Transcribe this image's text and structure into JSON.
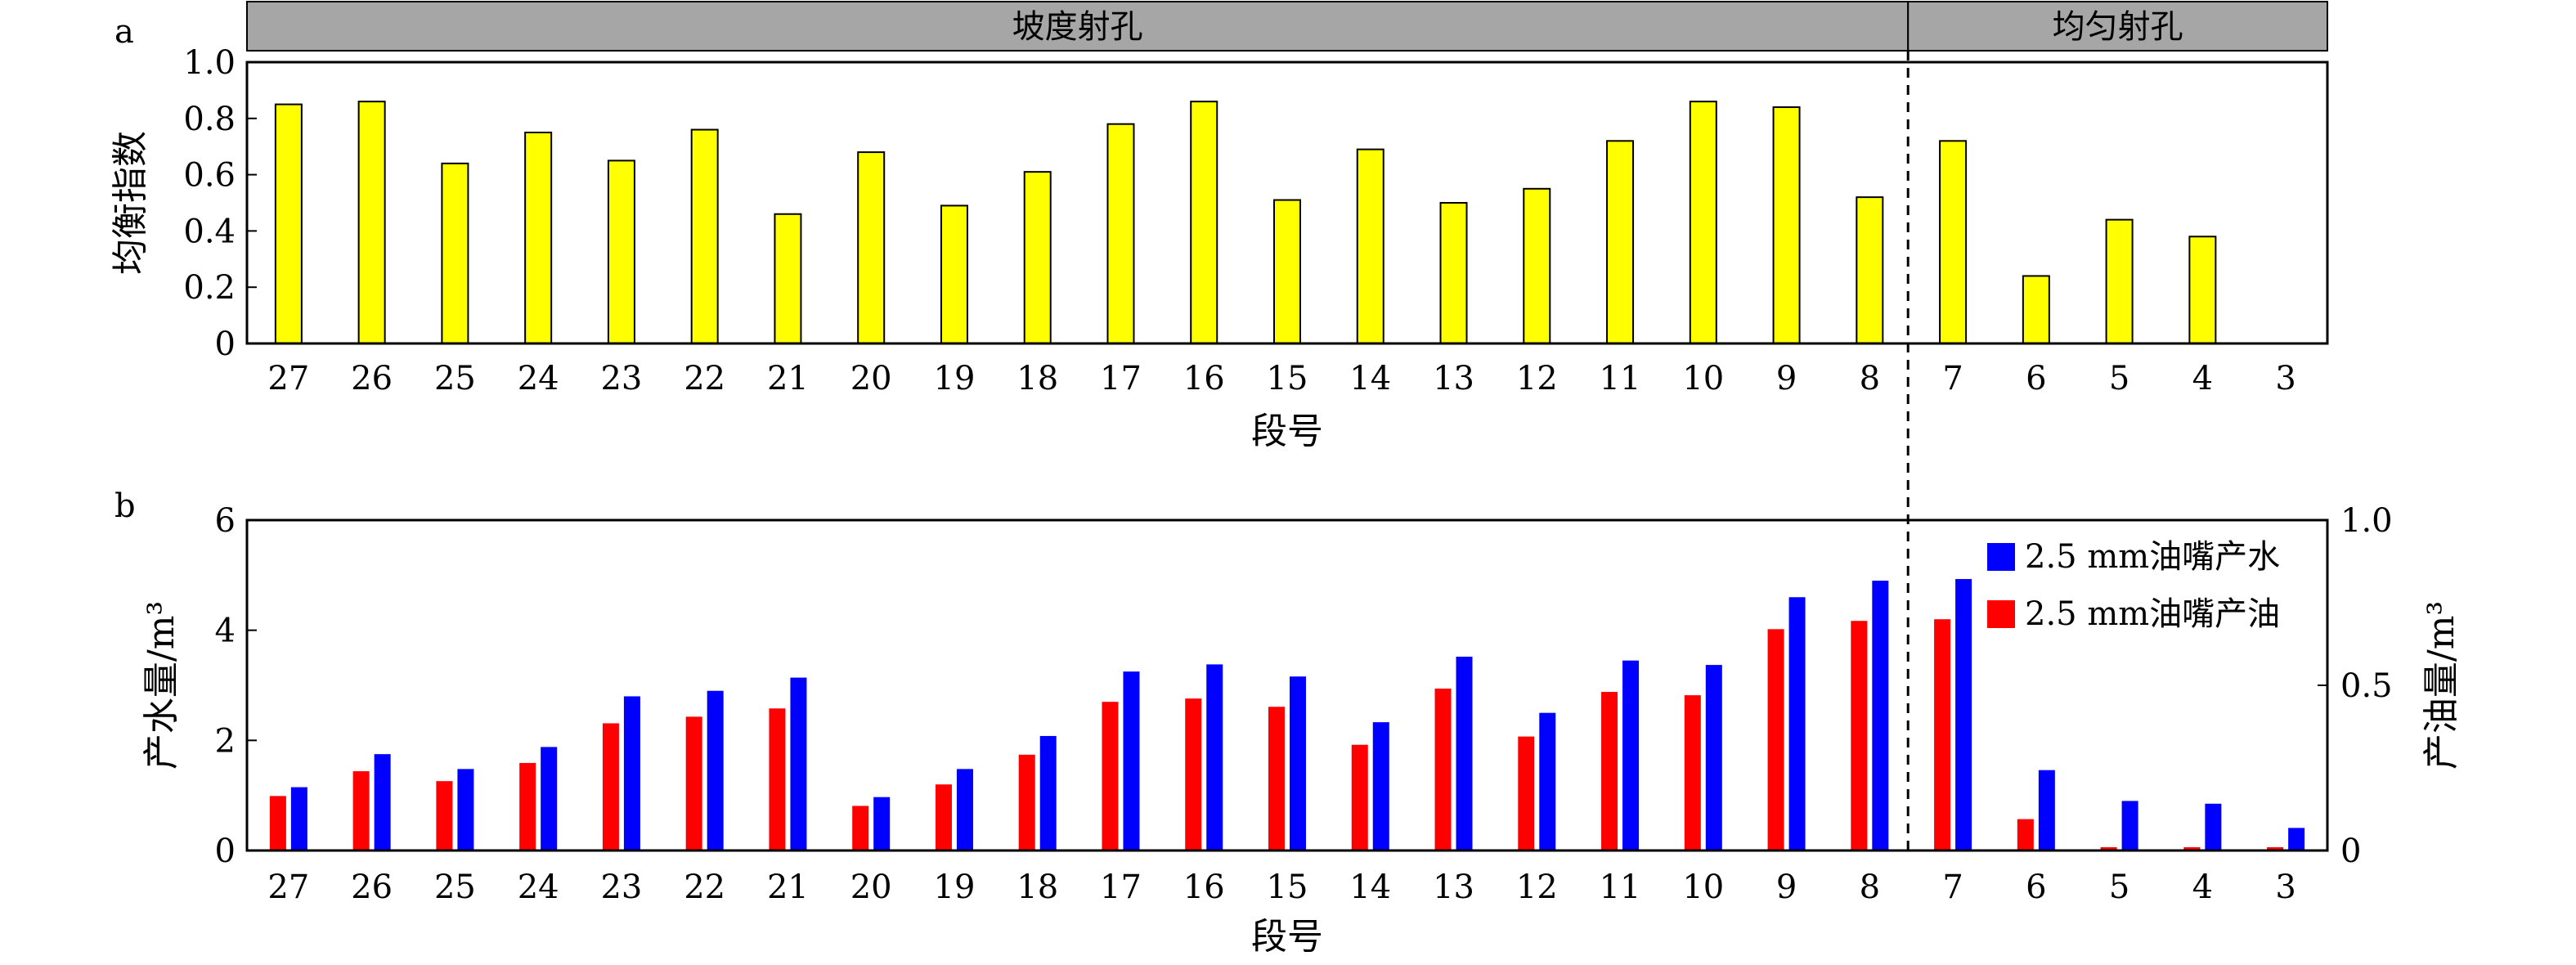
{
  "chart_data": [
    {
      "panel_label": "a",
      "type": "bar",
      "group_headers": [
        {
          "label": "坡度射孔",
          "from": "27",
          "to": "8"
        },
        {
          "label": "均匀射孔",
          "from": "7",
          "to": "3"
        }
      ],
      "categories": [
        "27",
        "26",
        "25",
        "24",
        "23",
        "22",
        "21",
        "20",
        "19",
        "18",
        "17",
        "16",
        "15",
        "14",
        "13",
        "12",
        "11",
        "10",
        "9",
        "8",
        "7",
        "6",
        "5",
        "4",
        "3"
      ],
      "series": [
        {
          "values": [
            0.85,
            0.86,
            0.64,
            0.75,
            0.65,
            0.76,
            0.46,
            0.68,
            0.49,
            0.61,
            0.78,
            0.86,
            0.51,
            0.69,
            0.5,
            0.55,
            0.72,
            0.86,
            0.84,
            0.52,
            0.72,
            0.24,
            0.44,
            0.38,
            null
          ],
          "color": "#ffff00"
        }
      ],
      "xlabel": "段号",
      "ylabel": "均衡指数",
      "ylim": [
        0,
        1.0
      ],
      "yticks": [
        "0",
        "0.2",
        "0.4",
        "0.6",
        "0.8",
        "1.0"
      ],
      "divider_after": "8"
    },
    {
      "panel_label": "b",
      "type": "bar",
      "categories": [
        "27",
        "26",
        "25",
        "24",
        "23",
        "22",
        "21",
        "20",
        "19",
        "18",
        "17",
        "16",
        "15",
        "14",
        "13",
        "12",
        "11",
        "10",
        "9",
        "8",
        "7",
        "6",
        "5",
        "4",
        "3"
      ],
      "series": [
        {
          "name": "2.5 mm油嘴产油",
          "axis": "right",
          "color": "#ff0000",
          "values": [
            0.165,
            0.24,
            0.21,
            0.265,
            0.385,
            0.405,
            0.43,
            0.135,
            0.2,
            0.29,
            0.45,
            0.46,
            0.435,
            0.32,
            0.49,
            0.345,
            0.48,
            0.47,
            0.67,
            0.695,
            0.7,
            0.095,
            0.01,
            0.01,
            0.01
          ]
        },
        {
          "name": "2.5 mm油嘴产水",
          "axis": "left",
          "color": "#0000ff",
          "values": [
            1.15,
            1.75,
            1.48,
            1.88,
            2.8,
            2.9,
            3.14,
            0.97,
            1.48,
            2.08,
            3.25,
            3.38,
            3.16,
            2.33,
            3.52,
            2.5,
            3.45,
            3.37,
            4.6,
            4.9,
            4.93,
            1.46,
            0.9,
            0.85,
            0.41
          ]
        }
      ],
      "xlabel": "段号",
      "ylabel": "产水量/m³",
      "ylabel_right": "产油量/m³",
      "ylim": [
        0,
        6
      ],
      "ylim_right": [
        0,
        1.0
      ],
      "yticks": [
        "0",
        "2",
        "4",
        "6"
      ],
      "yticks_right": [
        "0",
        "0.5",
        "1.0"
      ],
      "legend_position": "top-right",
      "divider_after": "8"
    }
  ]
}
